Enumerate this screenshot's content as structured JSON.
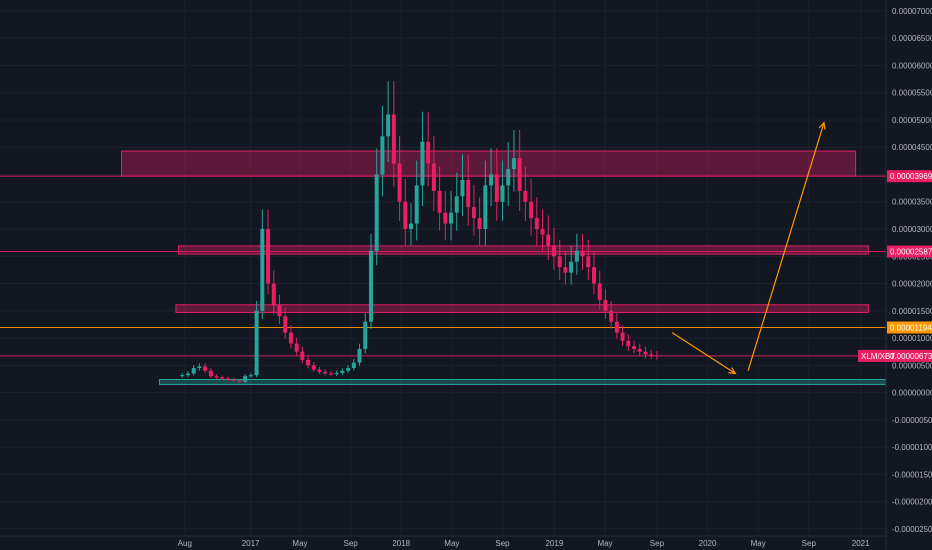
{
  "chart_data": {
    "type": "candlestick",
    "symbol_label": "XLM/XBT",
    "y_ticks": [
      "0.00007000",
      "0.00006500",
      "0.00006000",
      "0.00005500",
      "0.00005000",
      "0.00004500",
      "0.00004000",
      "0.00003500",
      "0.00003000",
      "0.00002500",
      "0.00002000",
      "0.00001500",
      "0.00001000",
      "0.00000500",
      "0.00000000",
      "-0.00000500",
      "-0.00001000",
      "-0.00001500",
      "-0.00002000",
      "-0.00002500"
    ],
    "ylim": [
      -2.63e-05,
      7.2e-05
    ],
    "x_ticks": [
      {
        "label": "Aug",
        "t": 0.0
      },
      {
        "label": "2017",
        "t": 5.2
      },
      {
        "label": "May",
        "t": 9.1
      },
      {
        "label": "Sep",
        "t": 13.1
      },
      {
        "label": "2018",
        "t": 17.1
      },
      {
        "label": "May",
        "t": 21.1
      },
      {
        "label": "Sep",
        "t": 25.1
      },
      {
        "label": "2019",
        "t": 29.2
      },
      {
        "label": "May",
        "t": 33.2
      },
      {
        "label": "Sep",
        "t": 37.3
      },
      {
        "label": "2020",
        "t": 41.3
      },
      {
        "label": "May",
        "t": 45.3
      },
      {
        "label": "Sep",
        "t": 49.3
      },
      {
        "label": "2021",
        "t": 53.4
      }
    ],
    "xlim": [
      -14.6,
      55.4
    ],
    "price_tags": [
      {
        "value": "0.00003969",
        "y": 3.969e-05,
        "color": "#e91e63"
      },
      {
        "value": "0.00002587",
        "y": 2.587e-05,
        "color": "#e91e63"
      },
      {
        "value": "0.00001194",
        "y": 1.194e-05,
        "color": "#ff9800"
      }
    ],
    "last_price": {
      "label": "XLM/XBT",
      "value": "0.00000673",
      "y": 6.73e-06,
      "color": "#e91e63"
    },
    "zones": [
      {
        "name": "resistance-zone-top",
        "y1": 3.97e-05,
        "y2": 4.43e-05,
        "x1": -5,
        "x2": 53.0,
        "color": "#e91e63"
      },
      {
        "name": "resistance-zone-mid",
        "y1": 2.54e-05,
        "y2": 2.69e-05,
        "x1": -0.5,
        "x2": 54.0,
        "color": "#e91e63"
      },
      {
        "name": "resistance-zone-low",
        "y1": 1.47e-05,
        "y2": 1.61e-05,
        "x1": -0.7,
        "x2": 54.0,
        "color": "#e91e63"
      },
      {
        "name": "support-zone",
        "y1": 1.5e-06,
        "y2": 2.4e-06,
        "x1": -2,
        "x2": 55.4,
        "color": "#26a69a"
      }
    ],
    "h_lines": [
      {
        "name": "line-3969",
        "y": 3.969e-05,
        "color": "#e91e63"
      },
      {
        "name": "line-2587",
        "y": 2.587e-05,
        "color": "#e91e63"
      },
      {
        "name": "line-1194",
        "y": 1.194e-05,
        "color": "#ff9800"
      },
      {
        "name": "line-last-price",
        "y": 6.73e-06,
        "color": "#e91e63"
      }
    ],
    "arrows": [
      {
        "name": "projection-arrow-down",
        "from": [
          38.5,
          1.1e-05
        ],
        "to": [
          43.5,
          3.5e-06
        ],
        "color": "#ff9800"
      },
      {
        "name": "projection-arrow-up",
        "from": [
          44.5,
          4e-06
        ],
        "to": [
          50.5,
          4.95e-05
        ],
        "color": "#ff9800"
      }
    ],
    "close": [
      3.2e-06,
      3.5e-06,
      4.5e-06,
      4.8e-06,
      4e-06,
      3e-06,
      2.8e-06,
      2.6e-06,
      2.4e-06,
      2.2e-06,
      2e-06,
      3e-06,
      3.2e-06,
      1.5e-05,
      3e-05,
      2e-05,
      1.6e-05,
      1.4e-05,
      1.1e-05,
      9e-06,
      7.5e-06,
      6e-06,
      5e-06,
      4.2e-06,
      3.8e-06,
      3.5e-06,
      3.4e-06,
      3.6e-06,
      4e-06,
      4.5e-06,
      5.5e-06,
      8e-06,
      1.3e-05,
      2.6e-05,
      4e-05,
      4.7e-05,
      5.1e-05,
      4.2e-05,
      3.5e-05,
      3e-05,
      3.1e-05,
      3.8e-05,
      4.6e-05,
      4.2e-05,
      3.7e-05,
      3.3e-05,
      3.1e-05,
      3.3e-05,
      3.6e-05,
      3.9e-05,
      3.4e-05,
      3.2e-05,
      3e-05,
      3.8e-05,
      4e-05,
      3.5e-05,
      3.8e-05,
      4.1e-05,
      4.3e-05,
      3.7e-05,
      3.5e-05,
      3.2e-05,
      3e-05,
      2.9e-05,
      2.7e-05,
      2.5e-05,
      2.3e-05,
      2.2e-05,
      2.4e-05,
      2.6e-05,
      2.5e-05,
      2.3e-05,
      2e-05,
      1.7e-05,
      1.5e-05,
      1.3e-05,
      1.1e-05,
      9.5e-06,
      8.5e-06,
      8e-06,
      7.5e-06,
      7e-06,
      6.8e-06,
      6.7e-06
    ]
  }
}
